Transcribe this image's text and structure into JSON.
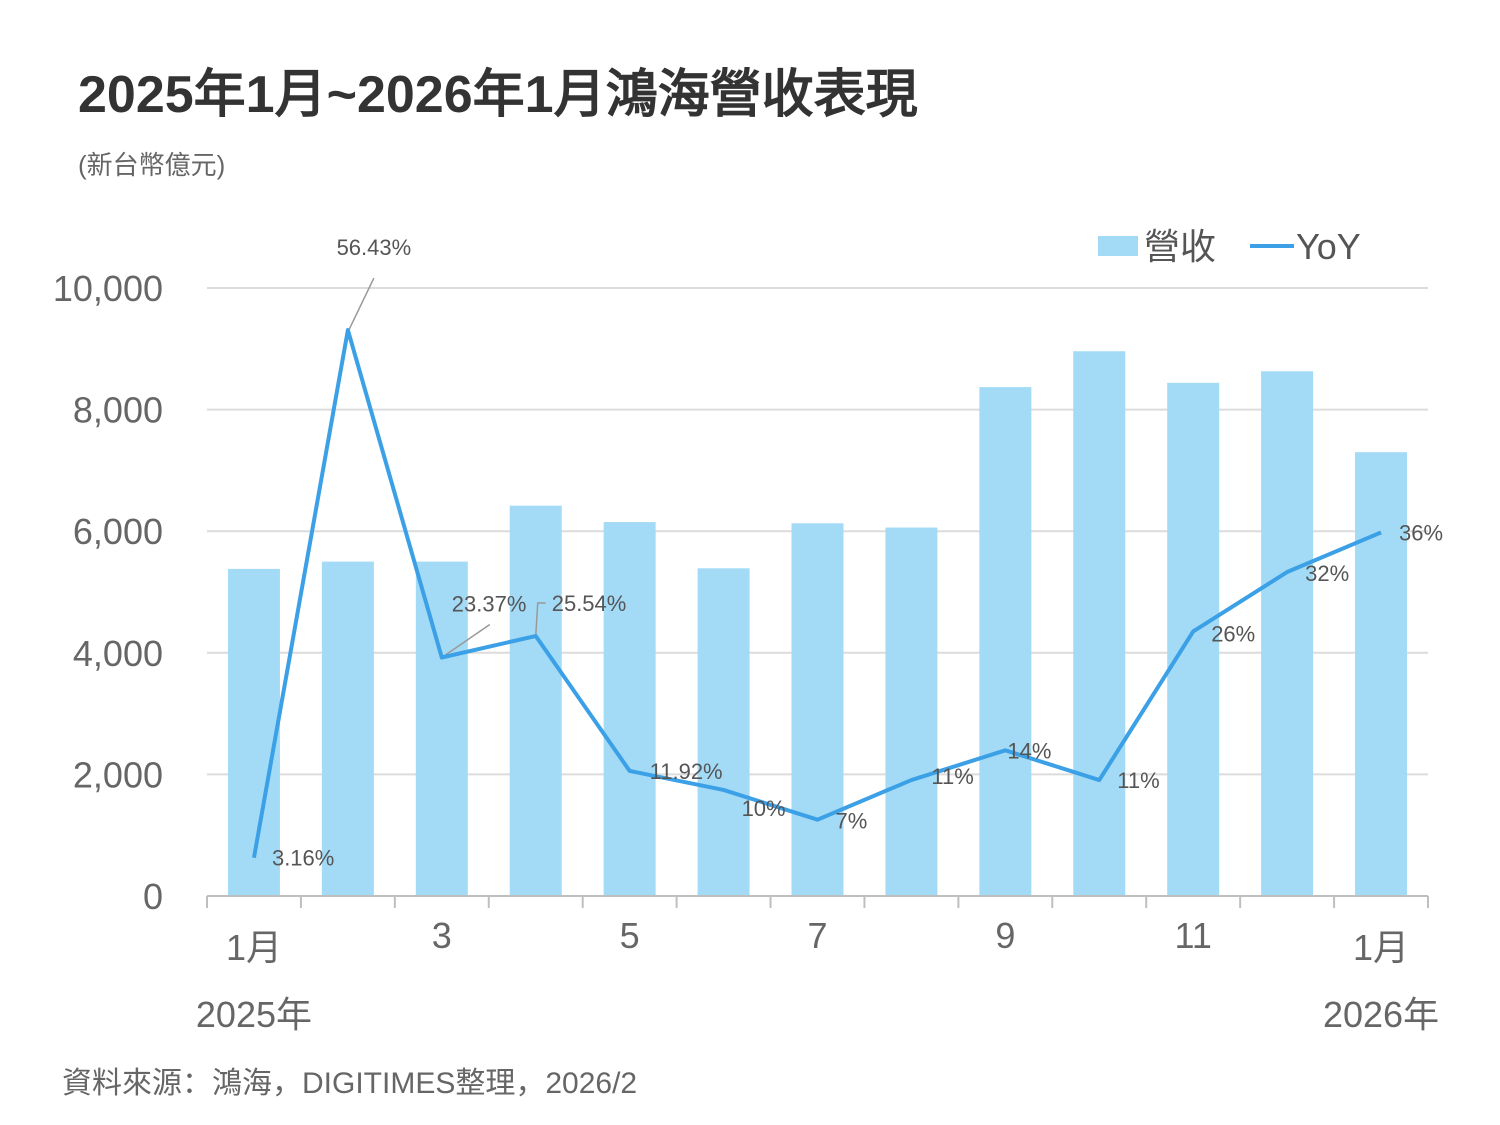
{
  "title": "2025年1月~2026年1月鴻海營收表現",
  "unit_label": "(新台幣億元)",
  "source": "資料來源：鴻海，DIGITIMES整理，2026/2",
  "colors": {
    "bar": "#a3dbf7",
    "line": "#3ba0e6",
    "grid": "#dcdcdc",
    "axis": "#bfbfbf"
  },
  "chart_data": {
    "type": "bar",
    "title": "2025年1月~2026年1月鴻海營收表現",
    "ylabel": "(新台幣億元)",
    "ylim": [
      0,
      10000
    ],
    "y_ticks": [
      "0",
      "2,000",
      "4,000",
      "6,000",
      "8,000",
      "10,000"
    ],
    "categories": [
      "2025-01",
      "2025-02",
      "2025-03",
      "2025-04",
      "2025-05",
      "2025-06",
      "2025-07",
      "2025-08",
      "2025-09",
      "2025-10",
      "2025-11",
      "2025-12",
      "2026-01"
    ],
    "x_tick_labels": [
      "1月",
      "",
      "3",
      "",
      "5",
      "",
      "7",
      "",
      "9",
      "",
      "11",
      "",
      "1月"
    ],
    "x_year_labels": [
      "2025年",
      "",
      "",
      "",
      "",
      "",
      "",
      "",
      "",
      "",
      "",
      "",
      "2026年"
    ],
    "legend": [
      "營收",
      "YoY"
    ],
    "series": [
      {
        "name": "營收",
        "type": "bar",
        "values": [
          5380,
          5500,
          5500,
          6420,
          6150,
          5390,
          6130,
          6060,
          8370,
          8960,
          8440,
          8630,
          7300
        ]
      },
      {
        "name": "YoY",
        "type": "line",
        "values": [
          3.16,
          56.43,
          23.37,
          25.54,
          11.92,
          10,
          7,
          11,
          14,
          11,
          26,
          32,
          36
        ],
        "labels": [
          "3.16%",
          "56.43%",
          "23.37%",
          "25.54%",
          "11.92%",
          "10%",
          "7%",
          "11%",
          "14%",
          "11%",
          "26%",
          "32%",
          "36%"
        ]
      }
    ]
  }
}
